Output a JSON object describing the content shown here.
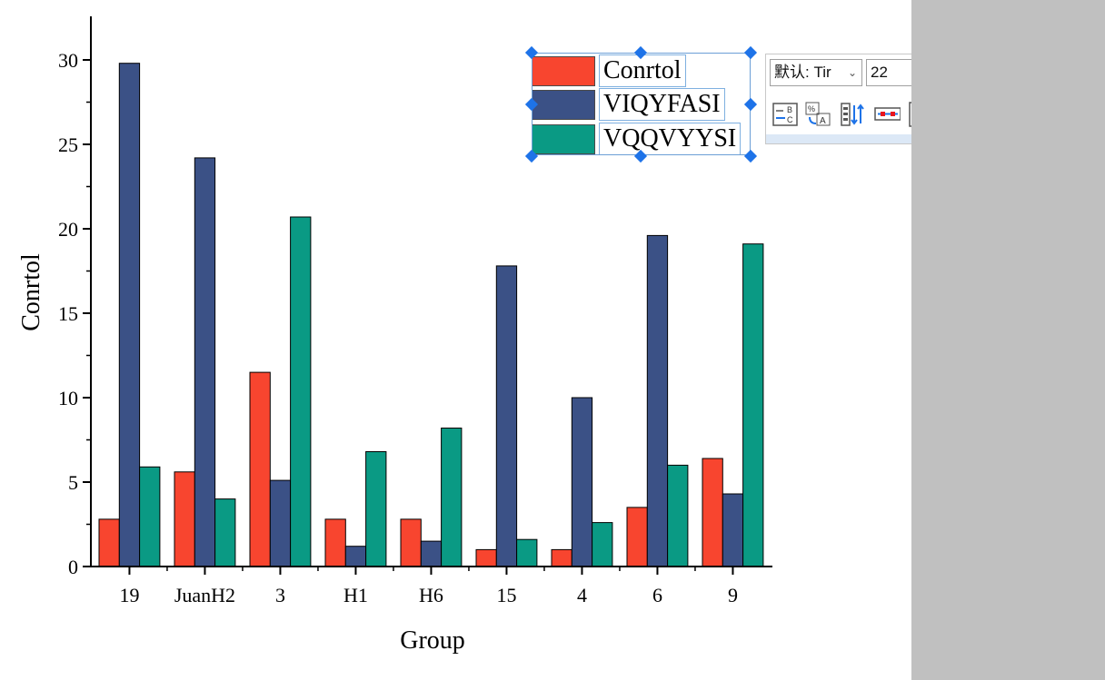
{
  "chart_data": {
    "type": "bar",
    "title": "",
    "xlabel": "Group",
    "ylabel": "Conrtol",
    "ylim": [
      0,
      32.5
    ],
    "yticks": [
      "0",
      "5",
      "10",
      "15",
      "20",
      "25",
      "30"
    ],
    "categories": [
      "19",
      "JuanH2",
      "3",
      "H1",
      "H6",
      "15",
      "4",
      "6",
      "9"
    ],
    "series": [
      {
        "name": "Conrtol",
        "color": "#f8452f",
        "values": [
          2.8,
          5.6,
          11.5,
          2.8,
          2.8,
          1.0,
          1.0,
          3.5,
          6.4
        ]
      },
      {
        "name": "VIQYFASI",
        "color": "#3b5186",
        "values": [
          29.8,
          24.2,
          5.1,
          1.2,
          1.5,
          17.8,
          10.0,
          19.6,
          4.3
        ]
      },
      {
        "name": "VQQVYYSI",
        "color": "#0a9a84",
        "values": [
          5.9,
          4.0,
          20.7,
          6.8,
          8.2,
          1.6,
          2.6,
          6.0,
          19.1
        ]
      }
    ],
    "legend_position": "top-right"
  },
  "toolbar": {
    "font_name": "默认: Tir",
    "font_size": "22",
    "icons": [
      "increase-font-icon",
      "decrease-font-icon",
      "font-color-icon",
      "legend-icon",
      "subscript-icon",
      "percent-format-icon",
      "reverse-order-icon",
      "legend-box-icon",
      "plot-list-icon",
      "curve-label-icon",
      "wrap-text-icon",
      "align-center-icon",
      "settings-gear-icon"
    ],
    "more_dots": "•••"
  },
  "colors": {
    "accent_blue": "#1e73e8",
    "highlight_red": "#e8141e",
    "gray_background": "#c0c0c0"
  }
}
